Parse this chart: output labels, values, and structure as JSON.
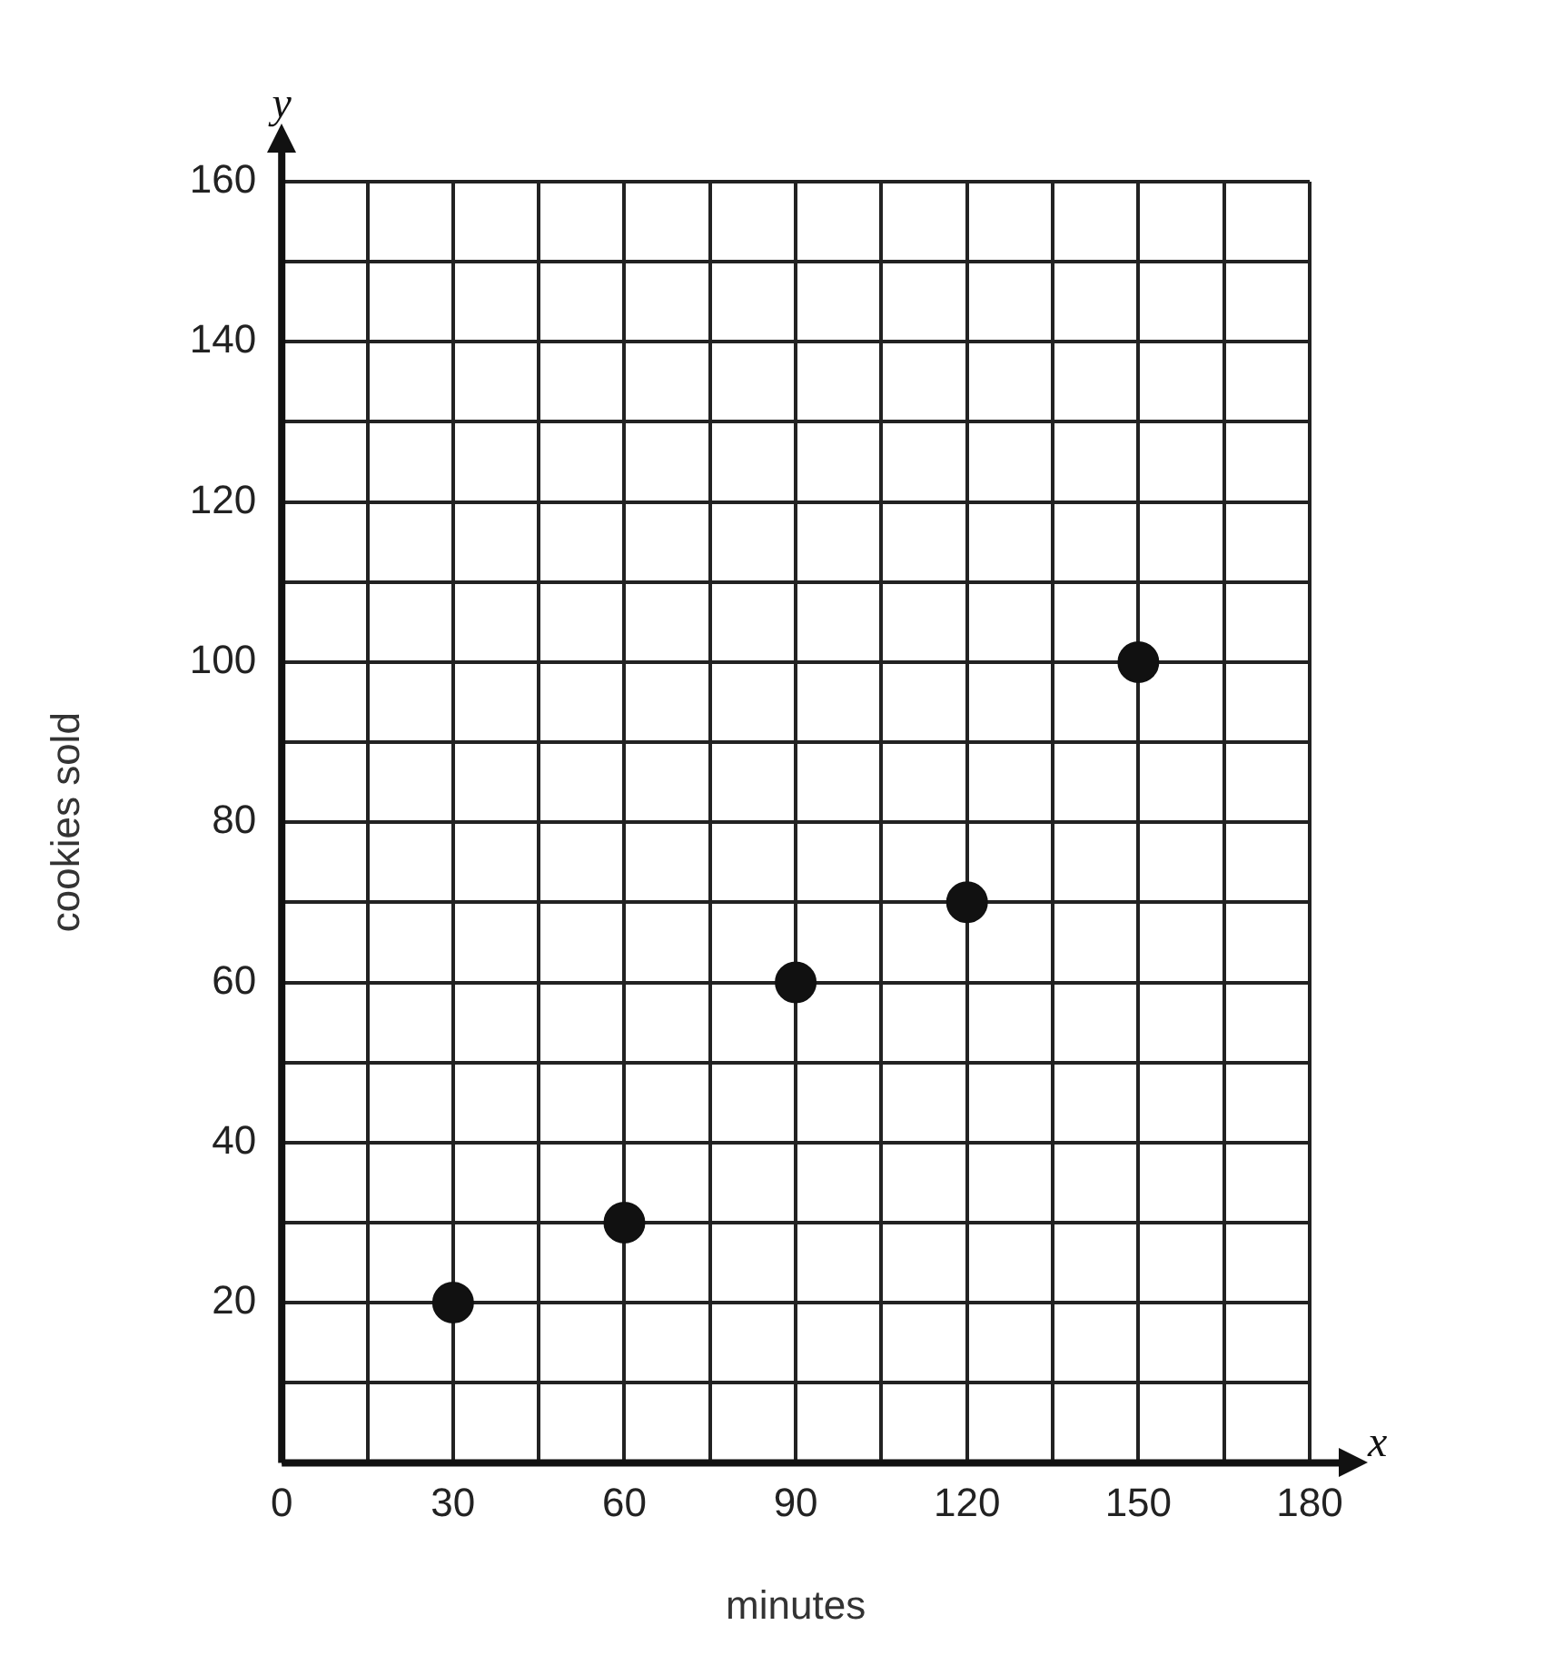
{
  "chart_data": {
    "type": "scatter",
    "xlabel": "minutes",
    "ylabel": "cookies sold",
    "annotations": [
      "y",
      "x"
    ],
    "series": [
      {
        "color": "#111111",
        "x": [
          30,
          60,
          90,
          120,
          150
        ],
        "values": [
          20,
          30,
          60,
          70,
          100
        ]
      }
    ],
    "xlim": [
      0,
      180
    ],
    "ylim": [
      0,
      160
    ],
    "xticks": [
      0,
      {
        "value": 15,
        "label": null
      },
      30,
      {
        "value": 45,
        "label": null
      },
      60,
      {
        "value": 75,
        "label": null
      },
      90,
      {
        "value": 105,
        "label": null
      },
      120,
      {
        "value": 135,
        "label": null
      },
      150,
      {
        "value": 165,
        "label": null
      },
      180
    ],
    "yticks": [
      {
        "value": 0,
        "label": null
      },
      {
        "value": 10,
        "label": null
      },
      20,
      {
        "value": 30,
        "label": null
      },
      40,
      {
        "value": 50,
        "label": null
      },
      60,
      {
        "value": 70,
        "label": null
      },
      80,
      {
        "value": 90,
        "label": null
      },
      100,
      {
        "value": 110,
        "label": null
      },
      120,
      {
        "value": 130,
        "label": null
      },
      140,
      {
        "value": 150,
        "label": null
      },
      160
    ],
    "grid": true,
    "legend": false,
    "marker": "circle"
  }
}
